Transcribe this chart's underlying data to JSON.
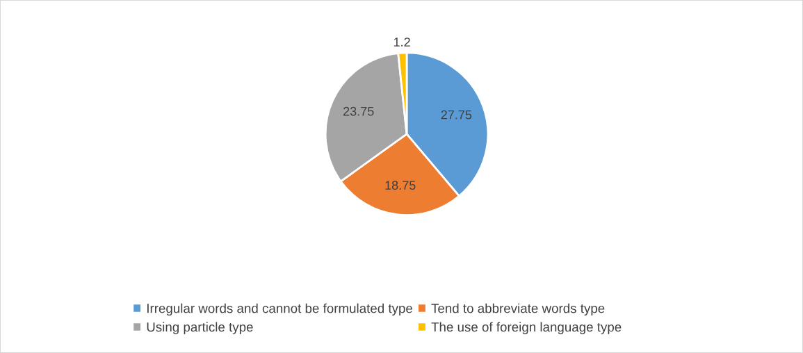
{
  "chart_data": {
    "type": "pie",
    "categories": [
      "Irregular words and cannot be formulated type",
      "Tend to abbreviate words type",
      "Using particle type",
      "The use of foreign language type"
    ],
    "values": [
      27.75,
      18.75,
      23.75,
      1.2
    ],
    "colors": [
      "#5b9bd5",
      "#ed7d31",
      "#a5a5a5",
      "#ffc000"
    ],
    "data_labels": true,
    "legend": "bottom"
  }
}
